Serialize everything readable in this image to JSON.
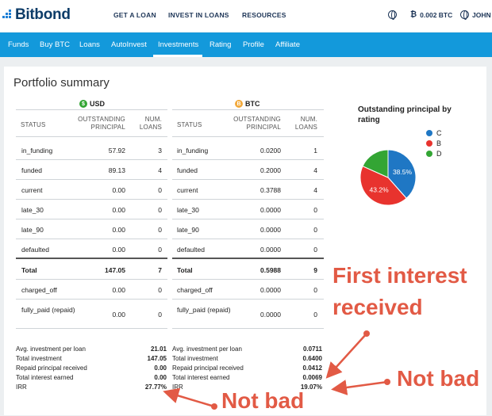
{
  "header": {
    "logo_text": "Bitbond",
    "nav": [
      "GET A LOAN",
      "INVEST IN LOANS",
      "RESOURCES"
    ],
    "balance": "0.002 BTC",
    "user": "JOHN"
  },
  "tabs": {
    "items": [
      "Funds",
      "Buy BTC",
      "Loans",
      "AutoInvest",
      "Investments",
      "Rating",
      "Profile",
      "Affiliate"
    ],
    "active": "Investments"
  },
  "portfolio": {
    "title": "Portfolio summary",
    "usd": {
      "currency": "USD",
      "coin_glyph": "$",
      "headers": {
        "status": "STATUS",
        "principal": "OUTSTANDING PRINCIPAL",
        "loans": "NUM. LOANS"
      },
      "rows": [
        {
          "status": "in_funding",
          "principal": "57.92",
          "loans": "3"
        },
        {
          "status": "funded",
          "principal": "89.13",
          "loans": "4"
        },
        {
          "status": "current",
          "principal": "0.00",
          "loans": "0"
        },
        {
          "status": "late_30",
          "principal": "0.00",
          "loans": "0"
        },
        {
          "status": "late_90",
          "principal": "0.00",
          "loans": "0"
        },
        {
          "status": "defaulted",
          "principal": "0.00",
          "loans": "0"
        }
      ],
      "total": {
        "status": "Total",
        "principal": "147.05",
        "loans": "7"
      },
      "extra_rows": [
        {
          "status": "charged_off",
          "principal": "0.00",
          "loans": "0"
        },
        {
          "status": "fully_paid (repaid)",
          "principal": "0.00",
          "loans": "0"
        }
      ],
      "stats": [
        {
          "label": "Avg. investment per loan",
          "value": "21.01"
        },
        {
          "label": "Total investment",
          "value": "147.05"
        },
        {
          "label": "Repaid principal received",
          "value": "0.00"
        },
        {
          "label": "Total interest earned",
          "value": "0.00"
        },
        {
          "label": "IRR",
          "value": "27.77%"
        }
      ]
    },
    "btc": {
      "currency": "BTC",
      "coin_glyph": "B",
      "headers": {
        "status": "STATUS",
        "principal": "OUTSTANDING PRINCIPAL",
        "loans": "NUM. LOANS"
      },
      "rows": [
        {
          "status": "in_funding",
          "principal": "0.0200",
          "loans": "1"
        },
        {
          "status": "funded",
          "principal": "0.2000",
          "loans": "4"
        },
        {
          "status": "current",
          "principal": "0.3788",
          "loans": "4"
        },
        {
          "status": "late_30",
          "principal": "0.0000",
          "loans": "0"
        },
        {
          "status": "late_90",
          "principal": "0.0000",
          "loans": "0"
        },
        {
          "status": "defaulted",
          "principal": "0.0000",
          "loans": "0"
        }
      ],
      "total": {
        "status": "Total",
        "principal": "0.5988",
        "loans": "9"
      },
      "extra_rows": [
        {
          "status": "charged_off",
          "principal": "0.0000",
          "loans": "0"
        },
        {
          "status": "fully_paid (repaid)",
          "principal": "0.0000",
          "loans": "0"
        }
      ],
      "stats": [
        {
          "label": "Avg. investment per loan",
          "value": "0.0711"
        },
        {
          "label": "Total investment",
          "value": "0.6400"
        },
        {
          "label": "Repaid principal received",
          "value": "0.0412"
        },
        {
          "label": "Total interest earned",
          "value": "0.0069"
        },
        {
          "label": "IRR",
          "value": "19.07%"
        }
      ]
    }
  },
  "chart_data": {
    "type": "pie",
    "title": "Outstanding principal by rating",
    "categories": [
      "C",
      "B",
      "D"
    ],
    "values": [
      38.5,
      43.2,
      18.3
    ],
    "labels": [
      "38.5%",
      "43.2%",
      ""
    ],
    "colors": [
      "#1f77c4",
      "#e8332e",
      "#33a534"
    ],
    "legend": "top-right"
  },
  "annotations": {
    "first_interest": [
      "First interest",
      "received"
    ],
    "not_bad_right": "Not bad",
    "not_bad_bottom": "Not bad",
    "color": "#e25a45"
  }
}
